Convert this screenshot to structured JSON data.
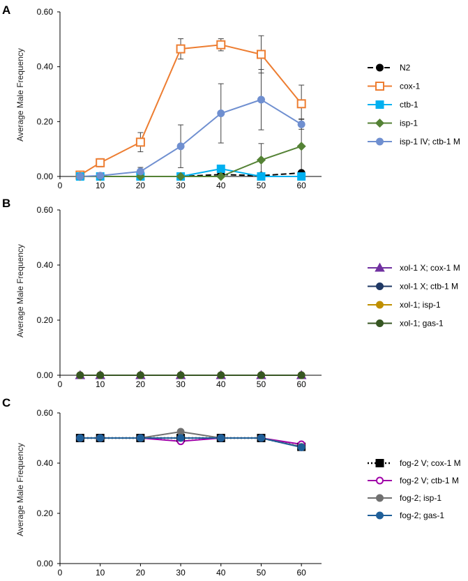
{
  "chart_data": [
    {
      "panel": "A",
      "type": "line",
      "ylabel": "Average Male Frequency",
      "xlabel": "",
      "x": [
        5,
        10,
        20,
        30,
        40,
        50,
        60
      ],
      "xticks": [
        "0",
        "10",
        "20",
        "30",
        "40",
        "50",
        "60"
      ],
      "xlim": [
        0,
        65
      ],
      "ylim": [
        0,
        0.6
      ],
      "yticks": [
        "0.00",
        "0.20",
        "0.40",
        "0.60"
      ],
      "legend_position": "right",
      "series": [
        {
          "name": "N2",
          "color": "#000000",
          "dash": "dash",
          "marker": "circle-filled",
          "values": [
            0,
            0,
            0,
            0,
            0.007,
            0.003,
            0.013
          ]
        },
        {
          "name": "cox-1",
          "color": "#ED7D31",
          "dash": "solid",
          "marker": "square-open",
          "values": [
            0.005,
            0.05,
            0.125,
            0.465,
            0.48,
            0.445,
            0.265
          ],
          "errors": [
            0,
            0.015,
            0.035,
            0.037,
            0.022,
            0.068,
            0.068
          ]
        },
        {
          "name": "ctb-1",
          "color": "#00B0F0",
          "dash": "solid",
          "marker": "square-filled",
          "values": [
            0,
            0,
            0,
            0,
            0.028,
            0,
            0
          ]
        },
        {
          "name": "isp-1",
          "color": "#548235",
          "dash": "solid",
          "marker": "diamond-filled",
          "values": [
            0,
            0,
            0,
            0,
            0,
            0.06,
            0.11
          ],
          "errors": [
            0,
            0,
            0,
            0,
            0,
            0.06,
            0.1
          ]
        },
        {
          "name": "isp-1 IV; ctb-1 M",
          "color": "#6F8FD0",
          "dash": "solid",
          "marker": "circle-filled",
          "values": [
            0,
            0.003,
            0.018,
            0.11,
            0.23,
            0.28,
            0.19
          ],
          "errors": [
            0,
            0,
            0.015,
            0.078,
            0.108,
            0.11,
            0.018
          ]
        }
      ]
    },
    {
      "panel": "B",
      "type": "line",
      "ylabel": "Average Male Frequency",
      "xlabel": "",
      "x": [
        5,
        10,
        20,
        30,
        40,
        50,
        60
      ],
      "xticks": [
        "0",
        "10",
        "20",
        "30",
        "40",
        "50",
        "60"
      ],
      "xlim": [
        0,
        65
      ],
      "ylim": [
        0,
        0.6
      ],
      "yticks": [
        "0.00",
        "0.20",
        "0.40",
        "0.60"
      ],
      "legend_position": "right",
      "series": [
        {
          "name": "xol-1 X; cox-1 M",
          "color": "#7030A0",
          "dash": "solid",
          "marker": "triangle-filled",
          "values": [
            0,
            0,
            0,
            0,
            0,
            0,
            0
          ]
        },
        {
          "name": "xol-1 X; ctb-1 M",
          "color": "#1F3864",
          "dash": "solid",
          "marker": "circle-filled",
          "values": [
            0,
            0,
            0,
            0,
            0,
            0,
            0
          ]
        },
        {
          "name": "xol-1; isp-1",
          "color": "#BF8F00",
          "dash": "solid",
          "marker": "circle-filled",
          "values": [
            0,
            0,
            0,
            0,
            0,
            0,
            0
          ]
        },
        {
          "name": "xol-1; gas-1",
          "color": "#375623",
          "dash": "solid",
          "marker": "circle-filled",
          "values": [
            0,
            0,
            0,
            0,
            0,
            0,
            0
          ]
        }
      ]
    },
    {
      "panel": "C",
      "type": "line",
      "ylabel": "Average Male Frequency",
      "xlabel": "",
      "x": [
        5,
        10,
        20,
        30,
        40,
        50,
        60
      ],
      "xticks": [
        "0",
        "10",
        "20",
        "30",
        "40",
        "50",
        "60"
      ],
      "xlim": [
        0,
        65
      ],
      "ylim": [
        0,
        0.6
      ],
      "yticks": [
        "0.00",
        "0.20",
        "0.40",
        "0.60"
      ],
      "legend_position": "right",
      "series": [
        {
          "name": "fog-2 V; cox-1 M",
          "color": "#000000",
          "dash": "dot",
          "marker": "square-filled",
          "values": [
            0.5,
            0.5,
            0.5,
            0.5,
            0.5,
            0.5,
            0.465
          ]
        },
        {
          "name": "fog-2 V; ctb-1 M",
          "color": "#A000A8",
          "dash": "solid",
          "marker": "circle-open",
          "values": [
            0.5,
            0.5,
            0.5,
            0.487,
            0.5,
            0.5,
            0.475
          ]
        },
        {
          "name": "fog-2; isp-1",
          "color": "#707070",
          "dash": "solid",
          "marker": "circle-filled",
          "values": [
            0.5,
            0.5,
            0.5,
            0.525,
            0.5,
            0.5,
            0.465
          ]
        },
        {
          "name": "fog-2; gas-1",
          "color": "#1F5F99",
          "dash": "solid",
          "marker": "circle-filled",
          "values": [
            0.5,
            0.5,
            0.5,
            0.5,
            0.5,
            0.5,
            0.463
          ]
        }
      ]
    }
  ]
}
